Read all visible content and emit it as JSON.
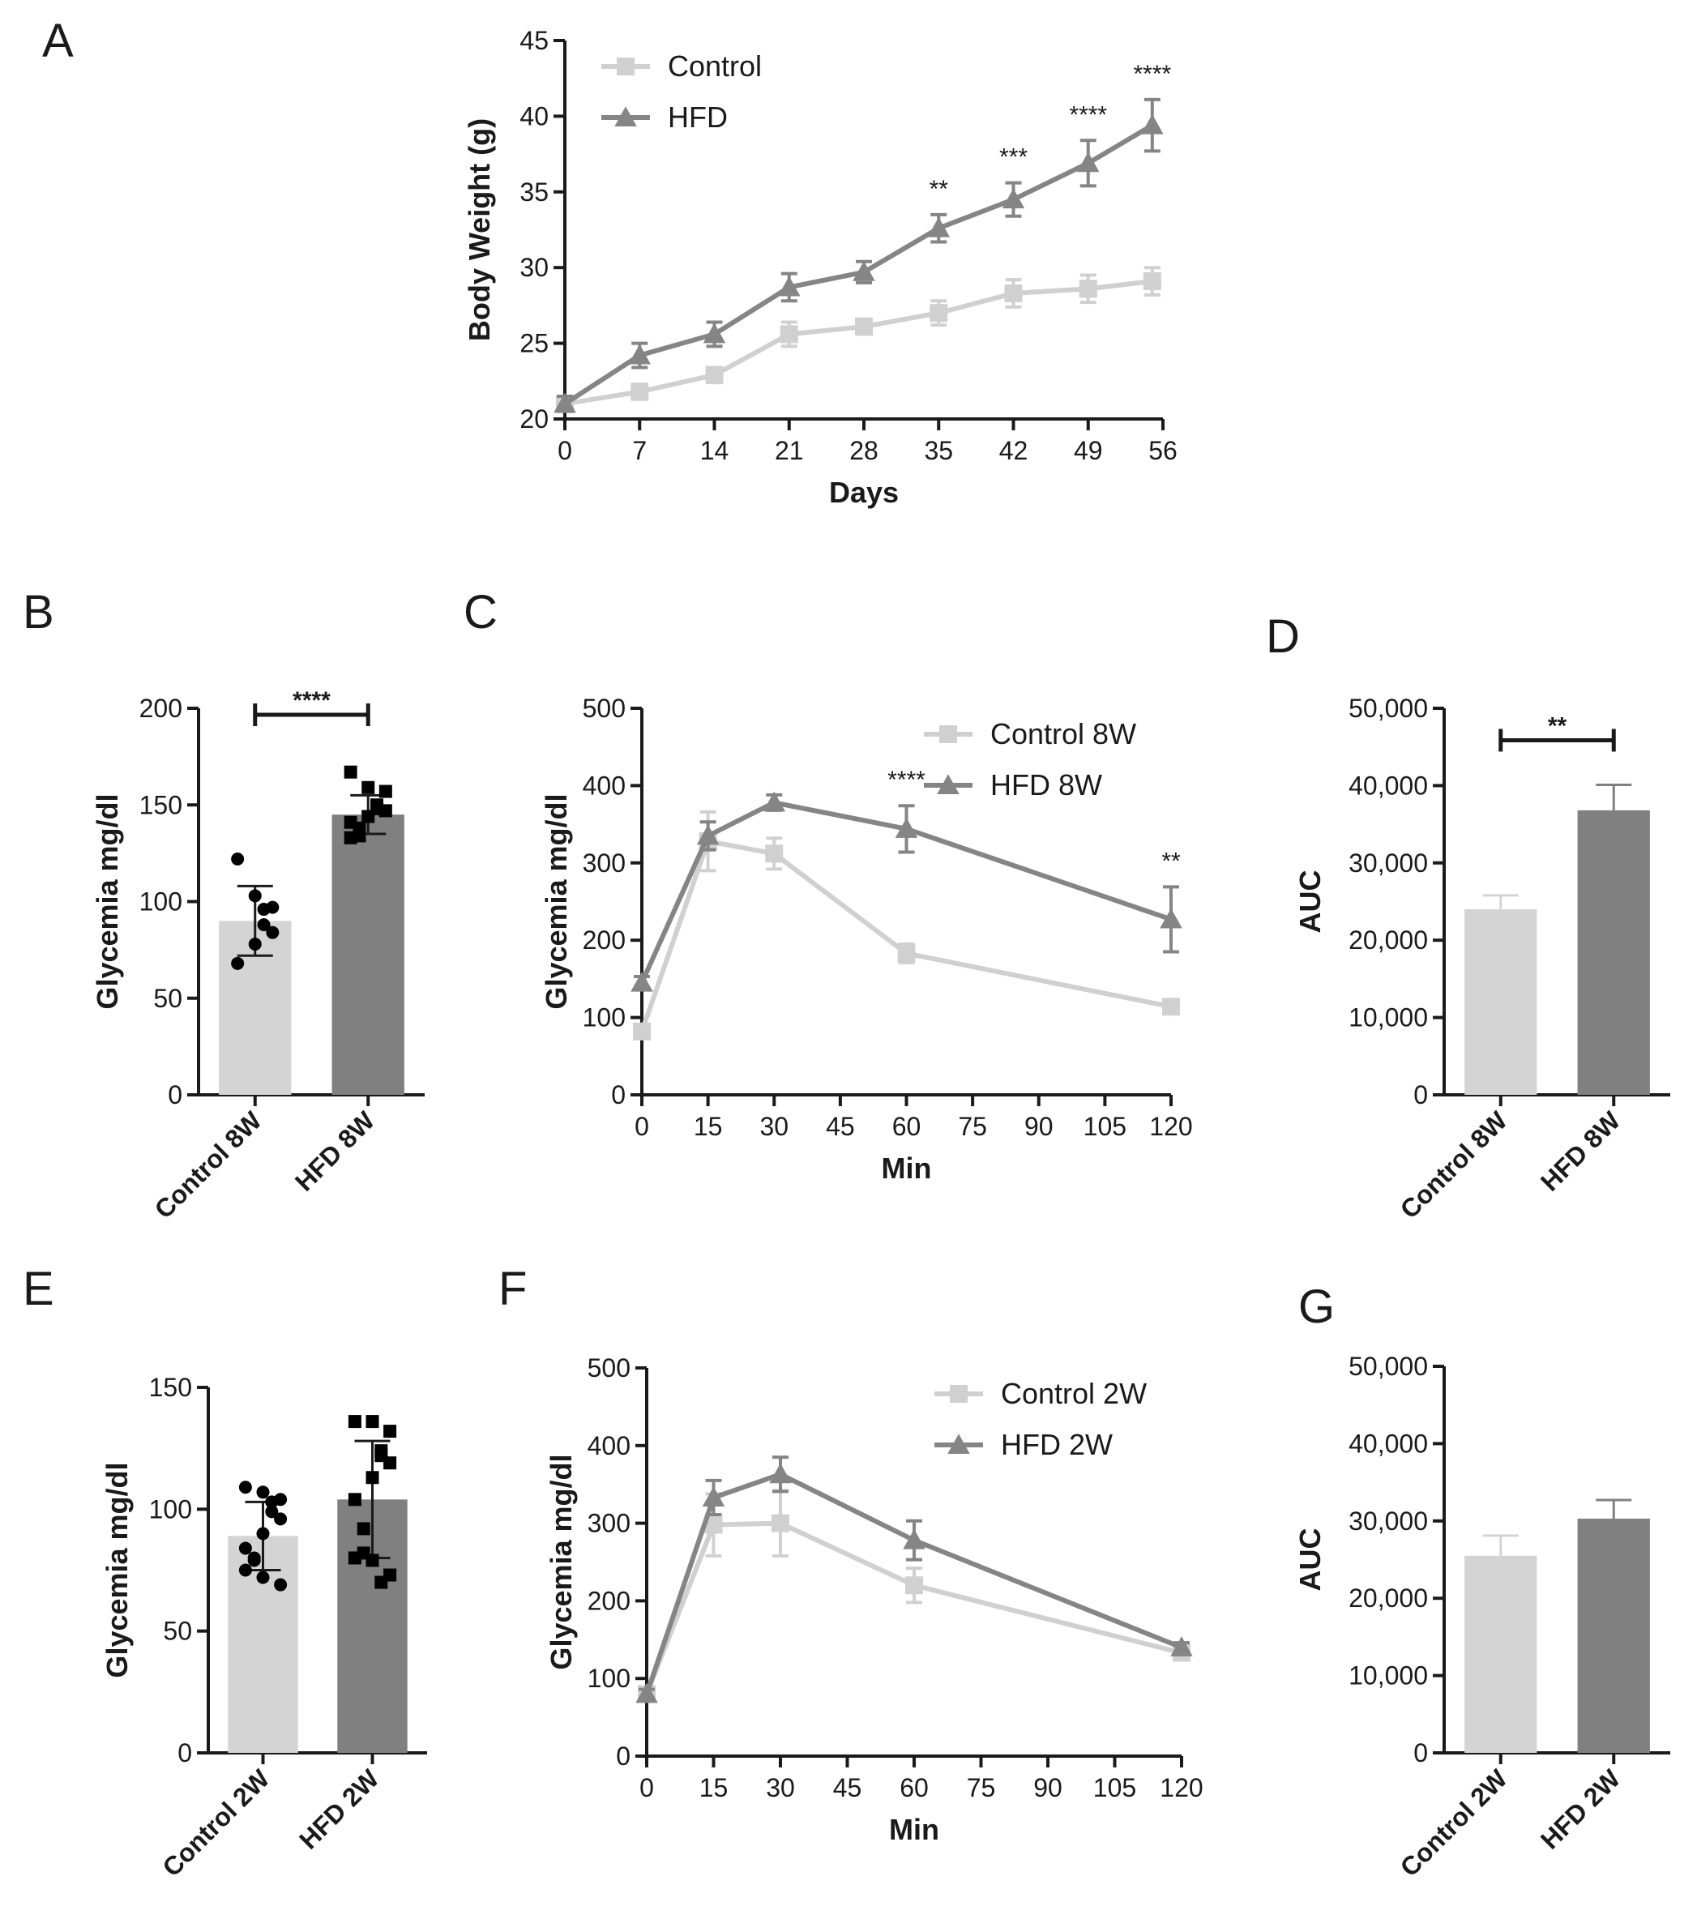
{
  "colors": {
    "control": "#d4d4d4",
    "hfd": "#808080",
    "control_line": "#d0d0d0",
    "hfd_line": "#858585",
    "axis": "#1a1a1a"
  },
  "chart_data": [
    {
      "id": "A",
      "panel_label": "A",
      "type": "line",
      "xlabel": "Days",
      "ylabel": "Body Weight (g)",
      "x": [
        0,
        7,
        14,
        21,
        28,
        35,
        42,
        49,
        55
      ],
      "xticks": [
        0,
        7,
        14,
        21,
        28,
        35,
        42,
        49,
        56
      ],
      "xlim": [
        0,
        56
      ],
      "ylim": [
        20,
        45
      ],
      "yticks": [
        20,
        25,
        30,
        35,
        40,
        45
      ],
      "legend_position": "top-left",
      "series": [
        {
          "name": "Control",
          "marker": "square",
          "values": [
            21.0,
            21.8,
            22.9,
            25.6,
            26.1,
            27.0,
            28.3,
            28.6,
            29.1
          ],
          "errors": [
            0.4,
            0.5,
            0.5,
            0.8,
            0.5,
            0.8,
            0.9,
            0.9,
            0.9
          ]
        },
        {
          "name": "HFD",
          "marker": "triangle",
          "values": [
            21.0,
            24.2,
            25.6,
            28.7,
            29.7,
            32.6,
            34.5,
            36.9,
            39.4
          ],
          "errors": [
            0.5,
            0.8,
            0.8,
            0.9,
            0.7,
            0.9,
            1.1,
            1.5,
            1.7
          ]
        }
      ],
      "annotations": [
        {
          "x": 35,
          "text": "**"
        },
        {
          "x": 42,
          "text": "***"
        },
        {
          "x": 49,
          "text": "****"
        },
        {
          "x": 55,
          "text": "****"
        }
      ]
    },
    {
      "id": "B",
      "panel_label": "B",
      "type": "bar",
      "ylabel": "Glycemia mg/dl",
      "ylim": [
        0,
        200
      ],
      "yticks": [
        0,
        50,
        100,
        150,
        200
      ],
      "categories": [
        "Control 8W",
        "HFD 8W"
      ],
      "values": [
        90,
        145
      ],
      "errors": [
        18,
        10
      ],
      "points": [
        [
          122,
          103,
          97,
          96,
          88,
          84,
          78,
          68
        ],
        [
          167,
          159,
          157,
          150,
          148,
          147,
          144,
          141,
          138,
          134,
          133
        ]
      ],
      "point_markers": [
        "circle",
        "square"
      ],
      "significance": "****"
    },
    {
      "id": "C",
      "panel_label": "C",
      "type": "line",
      "xlabel": "Min",
      "ylabel": "Glycemia mg/dl",
      "x": [
        0,
        15,
        30,
        60,
        120
      ],
      "xticks": [
        0,
        15,
        30,
        45,
        60,
        75,
        90,
        105,
        120
      ],
      "xlim": [
        0,
        120
      ],
      "ylim": [
        0,
        500
      ],
      "yticks": [
        0,
        100,
        200,
        300,
        400,
        500
      ],
      "legend_position": "top-right",
      "series": [
        {
          "name": "Control 8W",
          "marker": "square",
          "values": [
            82,
            328,
            312,
            183,
            114
          ],
          "errors": [
            8,
            38,
            20,
            12,
            8
          ]
        },
        {
          "name": "HFD 8W",
          "marker": "triangle",
          "values": [
            145,
            335,
            378,
            344,
            227
          ],
          "errors": [
            8,
            18,
            10,
            30,
            42
          ]
        }
      ],
      "annotations": [
        {
          "x": 60,
          "text": "****"
        },
        {
          "x": 120,
          "text": "**"
        }
      ]
    },
    {
      "id": "D",
      "panel_label": "D",
      "type": "bar",
      "ylabel": "AUC",
      "ylim": [
        0,
        50000
      ],
      "yticks": [
        0,
        10000,
        20000,
        30000,
        40000,
        50000
      ],
      "ytick_labels": [
        "0",
        "10,000",
        "20,000",
        "30,000",
        "40,000",
        "50,000"
      ],
      "categories": [
        "Control 8W",
        "HFD 8W"
      ],
      "values": [
        24000,
        36800
      ],
      "errors": [
        1800,
        3300
      ],
      "significance": "**"
    },
    {
      "id": "E",
      "panel_label": "E",
      "type": "bar",
      "ylabel": "Glycemia mg/dl",
      "ylim": [
        0,
        150
      ],
      "yticks": [
        0,
        50,
        100,
        150
      ],
      "categories": [
        "Control 2W",
        "HFD 2W"
      ],
      "values": [
        89,
        104
      ],
      "errors": [
        14,
        24
      ],
      "points": [
        [
          109,
          107,
          104,
          103,
          99,
          96,
          90,
          84,
          80,
          79,
          75,
          72,
          69
        ],
        [
          136,
          136,
          132,
          124,
          122,
          119,
          113,
          104,
          92,
          82,
          80,
          79,
          73,
          70
        ]
      ],
      "point_markers": [
        "circle",
        "square"
      ]
    },
    {
      "id": "F",
      "panel_label": "F",
      "type": "line",
      "xlabel": "Min",
      "ylabel": "Glycemia mg/dl",
      "x": [
        0,
        15,
        30,
        60,
        120
      ],
      "xticks": [
        0,
        15,
        30,
        45,
        60,
        75,
        90,
        105,
        120
      ],
      "xlim": [
        0,
        120
      ],
      "ylim": [
        0,
        500
      ],
      "yticks": [
        0,
        100,
        200,
        300,
        400,
        500
      ],
      "legend_position": "top-right",
      "series": [
        {
          "name": "Control 2W",
          "marker": "square",
          "values": [
            80,
            298,
            300,
            220,
            133
          ],
          "errors": [
            6,
            40,
            42,
            22,
            6
          ]
        },
        {
          "name": "HFD 2W",
          "marker": "triangle",
          "values": [
            80,
            333,
            363,
            278,
            140
          ],
          "errors": [
            6,
            22,
            22,
            25,
            6
          ]
        }
      ]
    },
    {
      "id": "G",
      "panel_label": "G",
      "type": "bar",
      "ylabel": "AUC",
      "ylim": [
        0,
        50000
      ],
      "yticks": [
        0,
        10000,
        20000,
        30000,
        40000,
        50000
      ],
      "ytick_labels": [
        "0",
        "10,000",
        "20,000",
        "30,000",
        "40,000",
        "50,000"
      ],
      "categories": [
        "Control 2W",
        "HFD 2W"
      ],
      "values": [
        25500,
        30300
      ],
      "errors": [
        2600,
        2400
      ]
    }
  ]
}
